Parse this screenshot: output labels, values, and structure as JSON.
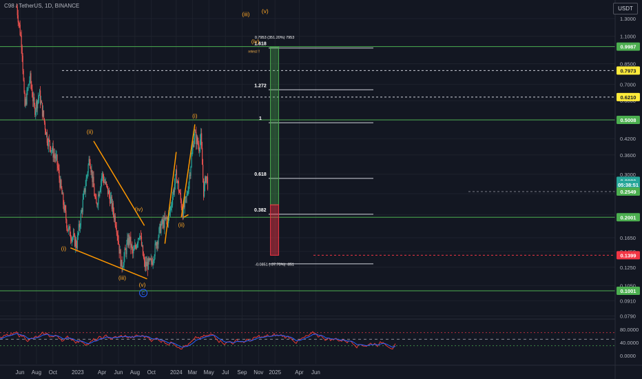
{
  "header": {
    "symbol_title": "C98 / TetherUS, 1D, BINANCE",
    "currency": "USDT"
  },
  "chart_data": {
    "type": "candlestick",
    "price_axis": {
      "scale": "log",
      "ticks": [
        "1.3000",
        "1.1000",
        "0.8500",
        "0.7000",
        "0.6000",
        "0.5000",
        "0.4200",
        "0.3600",
        "0.3000",
        "0.2500",
        "0.2050",
        "0.1650",
        "0.1450",
        "0.1250",
        "0.1050",
        "0.0910",
        "0.0790"
      ],
      "badges": [
        {
          "text": "0.9987",
          "color": "#4caf50",
          "price": 0.9987
        },
        {
          "text": "0.7973",
          "color": "#ffeb3b",
          "price": 0.7973
        },
        {
          "text": "0.6210",
          "color": "#ffeb3b",
          "price": 0.621
        },
        {
          "text": "0.5008",
          "color": "#4caf50",
          "price": 0.5008
        },
        {
          "text": "0.2820",
          "color": "#26a69a",
          "price": 0.282
        },
        {
          "text": "05:38:51",
          "color": "#26a69a",
          "price": 0.272
        },
        {
          "text": "0.2549",
          "color": "#4caf50",
          "price": 0.2549
        },
        {
          "text": "0.2001",
          "color": "#4caf50",
          "price": 0.2001
        },
        {
          "text": "0.1399",
          "color": "#f23645",
          "price": 0.1399
        },
        {
          "text": "0.1001",
          "color": "#4caf50",
          "price": 0.1001
        }
      ]
    },
    "time_axis": [
      "Jun",
      "Aug",
      "Oct",
      "2023",
      "Apr",
      "Jun",
      "Aug",
      "Oct",
      "2024",
      "Mar",
      "May",
      "Jul",
      "Sep",
      "Nov",
      "2025",
      "Apr",
      "Jun"
    ],
    "horizontal_levels": [
      {
        "price": 0.9987,
        "style": "solid",
        "color": "#4caf50"
      },
      {
        "price": 0.5008,
        "style": "solid",
        "color": "#4caf50"
      },
      {
        "price": 0.2001,
        "style": "solid",
        "color": "#4caf50"
      },
      {
        "price": 0.1001,
        "style": "solid",
        "color": "#4caf50"
      },
      {
        "price": 0.7973,
        "style": "dashed",
        "color": "#d1d4dc"
      },
      {
        "price": 0.621,
        "style": "dashed",
        "color": "#d1d4dc"
      }
    ],
    "fib_levels": [
      {
        "label": "1.618",
        "price": 0.985
      },
      {
        "label": "1.272",
        "price": 0.665
      },
      {
        "label": "1",
        "price": 0.4875
      },
      {
        "label": "0.618",
        "price": 0.2885
      },
      {
        "label": "0.382",
        "price": 0.206
      },
      {
        "label": "",
        "price": 0.129
      }
    ],
    "wave_labels": [
      {
        "text": "(i)",
        "date": "2022-11-10",
        "price": 0.1465
      },
      {
        "text": "(ii)",
        "date": "2023-02-15",
        "price": 0.44
      },
      {
        "text": "(iii)",
        "date": "2023-06-15",
        "price": 0.111
      },
      {
        "text": "(iv)",
        "date": "2023-08-15",
        "price": 0.212
      },
      {
        "text": "(v)",
        "date": "2023-08-28",
        "price": 0.104
      },
      {
        "text": "(i)",
        "date": "2024-03-10",
        "price": 0.51
      },
      {
        "text": "(ii)",
        "date": "2024-01-20",
        "price": 0.183
      },
      {
        "text": "(iii)",
        "date": "2024-09-15",
        "price": 1.33
      },
      {
        "text": "(iv)",
        "date": "2024-10-20",
        "price": 1.03
      },
      {
        "text": "(v)",
        "date": "2024-11-25",
        "price": 1.37
      }
    ],
    "annotations": {
      "retest": "retest !!",
      "long_target": "0.7953 (351.20%) 7953",
      "long_stop": "-0.0851 (-37.70%) -851",
      "circle_label": "C"
    },
    "rsi": {
      "ticks": [
        "80.0000",
        "40.0000",
        "0.0000"
      ]
    }
  }
}
